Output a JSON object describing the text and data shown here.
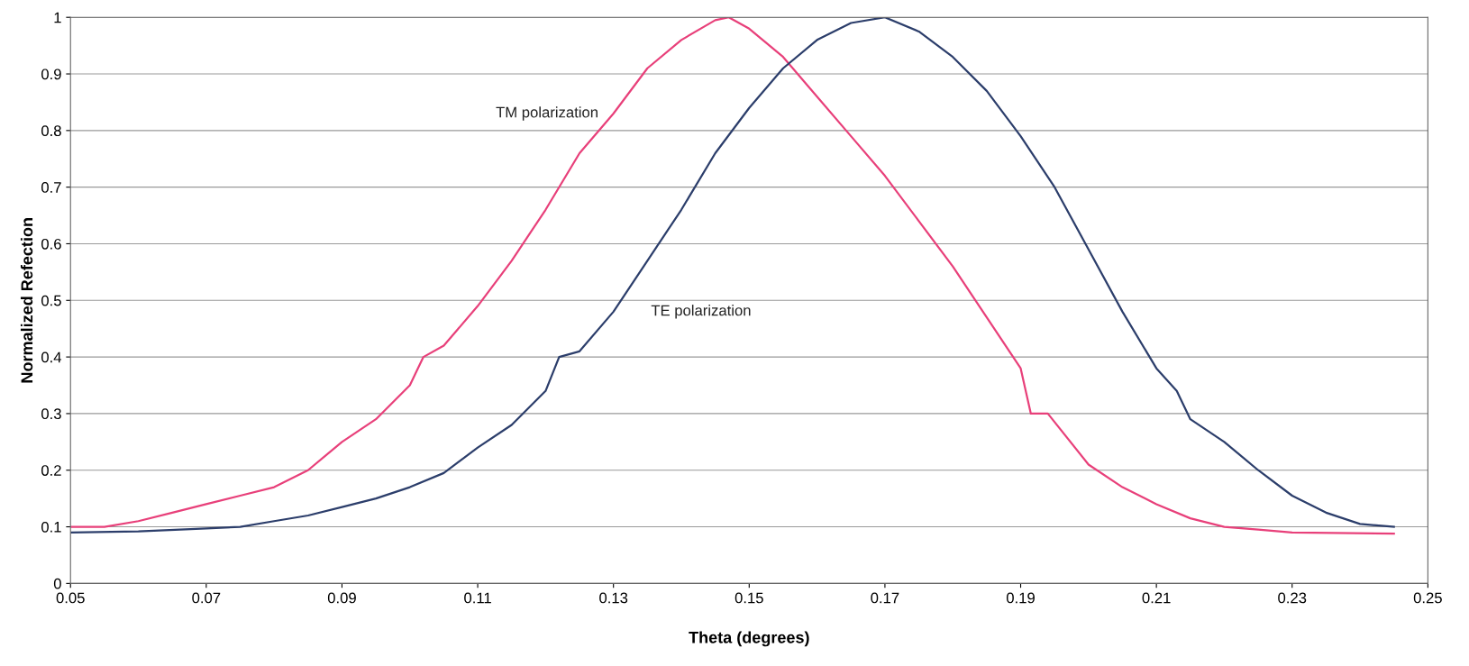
{
  "chart_data": {
    "type": "line",
    "xlabel": "Theta (degrees)",
    "ylabel": "Normalized Refection",
    "xlim": [
      0.05,
      0.25
    ],
    "xticks": [
      0.05,
      0.07,
      0.09,
      0.11,
      0.13,
      0.15,
      0.17,
      0.19,
      0.21,
      0.23,
      0.25
    ],
    "ylim": [
      0,
      1
    ],
    "yticks": [
      0,
      0.1,
      0.2,
      0.3,
      0.4,
      0.5,
      0.6,
      0.7,
      0.8,
      0.9,
      1
    ],
    "grid": "y",
    "legend": false,
    "marker": "none",
    "line_style": "solid",
    "series": [
      {
        "name": "TM polarization",
        "color": "#e8407a",
        "x": [
          0.05,
          0.055,
          0.06,
          0.065,
          0.07,
          0.075,
          0.08,
          0.085,
          0.09,
          0.095,
          0.1,
          0.102,
          0.105,
          0.11,
          0.115,
          0.12,
          0.125,
          0.13,
          0.135,
          0.14,
          0.145,
          0.147,
          0.15,
          0.155,
          0.16,
          0.165,
          0.17,
          0.175,
          0.18,
          0.185,
          0.19,
          0.1915,
          0.194,
          0.2,
          0.205,
          0.21,
          0.215,
          0.22,
          0.225,
          0.23,
          0.245
        ],
        "values": [
          0.1,
          0.1,
          0.11,
          0.125,
          0.14,
          0.155,
          0.17,
          0.2,
          0.25,
          0.29,
          0.35,
          0.4,
          0.42,
          0.49,
          0.57,
          0.66,
          0.76,
          0.83,
          0.91,
          0.96,
          0.995,
          1.0,
          0.98,
          0.93,
          0.86,
          0.79,
          0.72,
          0.64,
          0.56,
          0.47,
          0.38,
          0.3,
          0.3,
          0.21,
          0.17,
          0.14,
          0.115,
          0.1,
          0.095,
          0.09,
          0.088
        ]
      },
      {
        "name": "TE polarization",
        "color": "#2c3e6b",
        "x": [
          0.05,
          0.06,
          0.07,
          0.075,
          0.08,
          0.085,
          0.09,
          0.095,
          0.1,
          0.105,
          0.11,
          0.115,
          0.12,
          0.122,
          0.125,
          0.13,
          0.135,
          0.14,
          0.145,
          0.15,
          0.155,
          0.16,
          0.165,
          0.17,
          0.175,
          0.18,
          0.185,
          0.19,
          0.195,
          0.2,
          0.205,
          0.21,
          0.213,
          0.215,
          0.22,
          0.225,
          0.23,
          0.235,
          0.24,
          0.245
        ],
        "values": [
          0.09,
          0.092,
          0.097,
          0.1,
          0.11,
          0.12,
          0.135,
          0.15,
          0.17,
          0.195,
          0.24,
          0.28,
          0.34,
          0.4,
          0.41,
          0.48,
          0.57,
          0.66,
          0.76,
          0.84,
          0.91,
          0.96,
          0.99,
          1.0,
          0.975,
          0.93,
          0.87,
          0.79,
          0.7,
          0.59,
          0.48,
          0.38,
          0.34,
          0.29,
          0.25,
          0.2,
          0.155,
          0.125,
          0.105,
          0.1
        ]
      }
    ]
  }
}
